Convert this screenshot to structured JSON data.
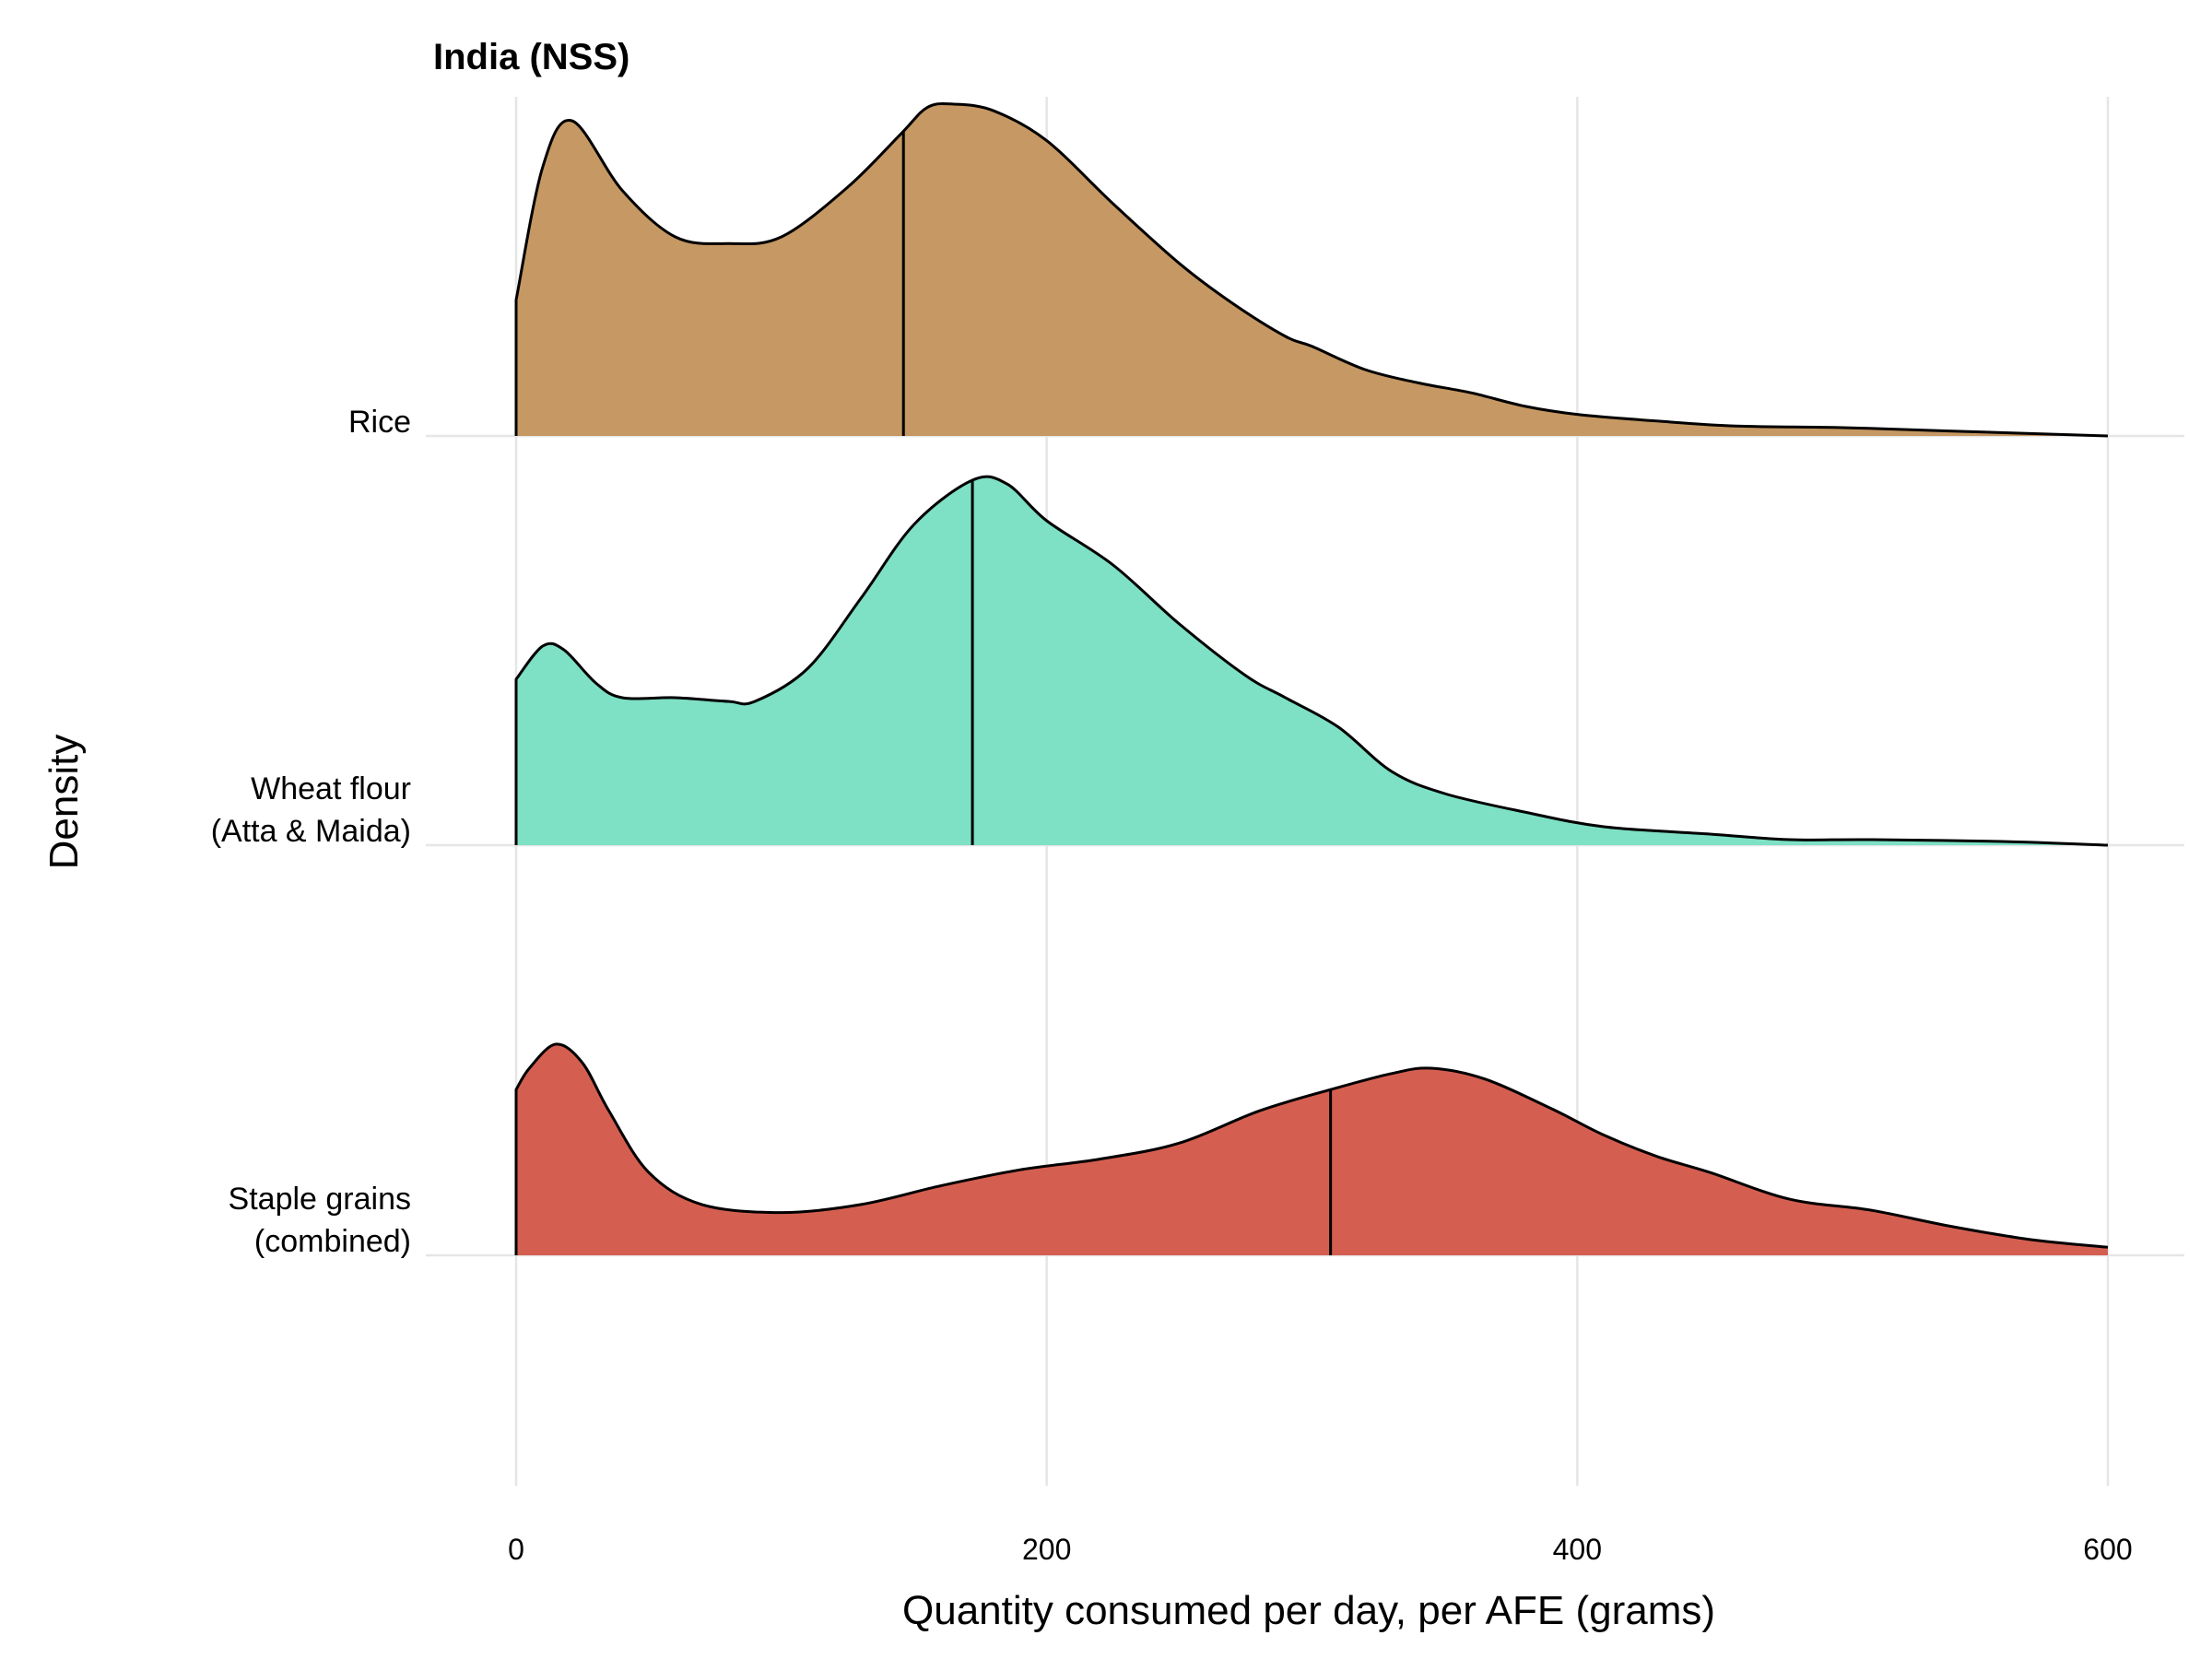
{
  "chart_data": {
    "type": "area",
    "title": "India (NSS)",
    "xlabel": "Quantity consumed per day, per AFE (grams)",
    "ylabel": "Density",
    "xlim": [
      0,
      600
    ],
    "x_ticks": [
      0,
      200,
      400,
      600
    ],
    "grid": true,
    "legend": "none",
    "categories": [
      "Rice",
      "Wheat flour\n(Atta & Maida)",
      "Staple grains\n(combined)"
    ],
    "series": [
      {
        "name": "Rice",
        "label_lines": [
          "Rice"
        ],
        "color": "#C4955E",
        "median": 146,
        "density_points": [
          [
            0,
            0.41
          ],
          [
            10,
            0.81
          ],
          [
            21,
            0.95
          ],
          [
            40,
            0.74
          ],
          [
            60,
            0.6
          ],
          [
            80,
            0.58
          ],
          [
            100,
            0.6
          ],
          [
            125,
            0.75
          ],
          [
            145,
            0.91
          ],
          [
            155,
            0.99
          ],
          [
            165,
            1.0
          ],
          [
            180,
            0.98
          ],
          [
            200,
            0.89
          ],
          [
            225,
            0.7
          ],
          [
            250,
            0.52
          ],
          [
            270,
            0.4
          ],
          [
            290,
            0.3
          ],
          [
            300,
            0.27
          ],
          [
            320,
            0.2
          ],
          [
            340,
            0.16
          ],
          [
            360,
            0.13
          ],
          [
            380,
            0.09
          ],
          [
            400,
            0.065
          ],
          [
            430,
            0.045
          ],
          [
            460,
            0.03
          ],
          [
            500,
            0.025
          ],
          [
            540,
            0.015
          ],
          [
            600,
            0.0
          ]
        ]
      },
      {
        "name": "Wheat flour (Atta & Maida)",
        "label_lines": [
          "Wheat flour ",
          "(Atta & Maida)"
        ],
        "color": "#7ADFC3",
        "median": 172,
        "density_points": [
          [
            0,
            0.45
          ],
          [
            10,
            0.54
          ],
          [
            18,
            0.53
          ],
          [
            30,
            0.44
          ],
          [
            40,
            0.4
          ],
          [
            60,
            0.4
          ],
          [
            80,
            0.39
          ],
          [
            90,
            0.39
          ],
          [
            110,
            0.48
          ],
          [
            130,
            0.67
          ],
          [
            150,
            0.87
          ],
          [
            172,
            0.99
          ],
          [
            185,
            0.98
          ],
          [
            200,
            0.88
          ],
          [
            225,
            0.76
          ],
          [
            250,
            0.6
          ],
          [
            275,
            0.46
          ],
          [
            290,
            0.4
          ],
          [
            310,
            0.32
          ],
          [
            330,
            0.2
          ],
          [
            350,
            0.14
          ],
          [
            380,
            0.09
          ],
          [
            410,
            0.05
          ],
          [
            450,
            0.03
          ],
          [
            480,
            0.015
          ],
          [
            510,
            0.015
          ],
          [
            560,
            0.01
          ],
          [
            600,
            0.0
          ]
        ]
      },
      {
        "name": "Staple grains (combined)",
        "label_lines": [
          "Staple grains ",
          "(combined)"
        ],
        "color": "#D35A4B",
        "median": 307,
        "density_points": [
          [
            0,
            0.62
          ],
          [
            5,
            0.7
          ],
          [
            15,
            0.79
          ],
          [
            25,
            0.72
          ],
          [
            35,
            0.54
          ],
          [
            50,
            0.31
          ],
          [
            70,
            0.19
          ],
          [
            100,
            0.16
          ],
          [
            130,
            0.19
          ],
          [
            160,
            0.26
          ],
          [
            190,
            0.32
          ],
          [
            220,
            0.36
          ],
          [
            250,
            0.42
          ],
          [
            280,
            0.54
          ],
          [
            307,
            0.62
          ],
          [
            330,
            0.68
          ],
          [
            345,
            0.7
          ],
          [
            365,
            0.66
          ],
          [
            390,
            0.55
          ],
          [
            410,
            0.45
          ],
          [
            430,
            0.37
          ],
          [
            450,
            0.31
          ],
          [
            480,
            0.21
          ],
          [
            510,
            0.17
          ],
          [
            540,
            0.11
          ],
          [
            570,
            0.06
          ],
          [
            600,
            0.03
          ]
        ]
      }
    ]
  }
}
